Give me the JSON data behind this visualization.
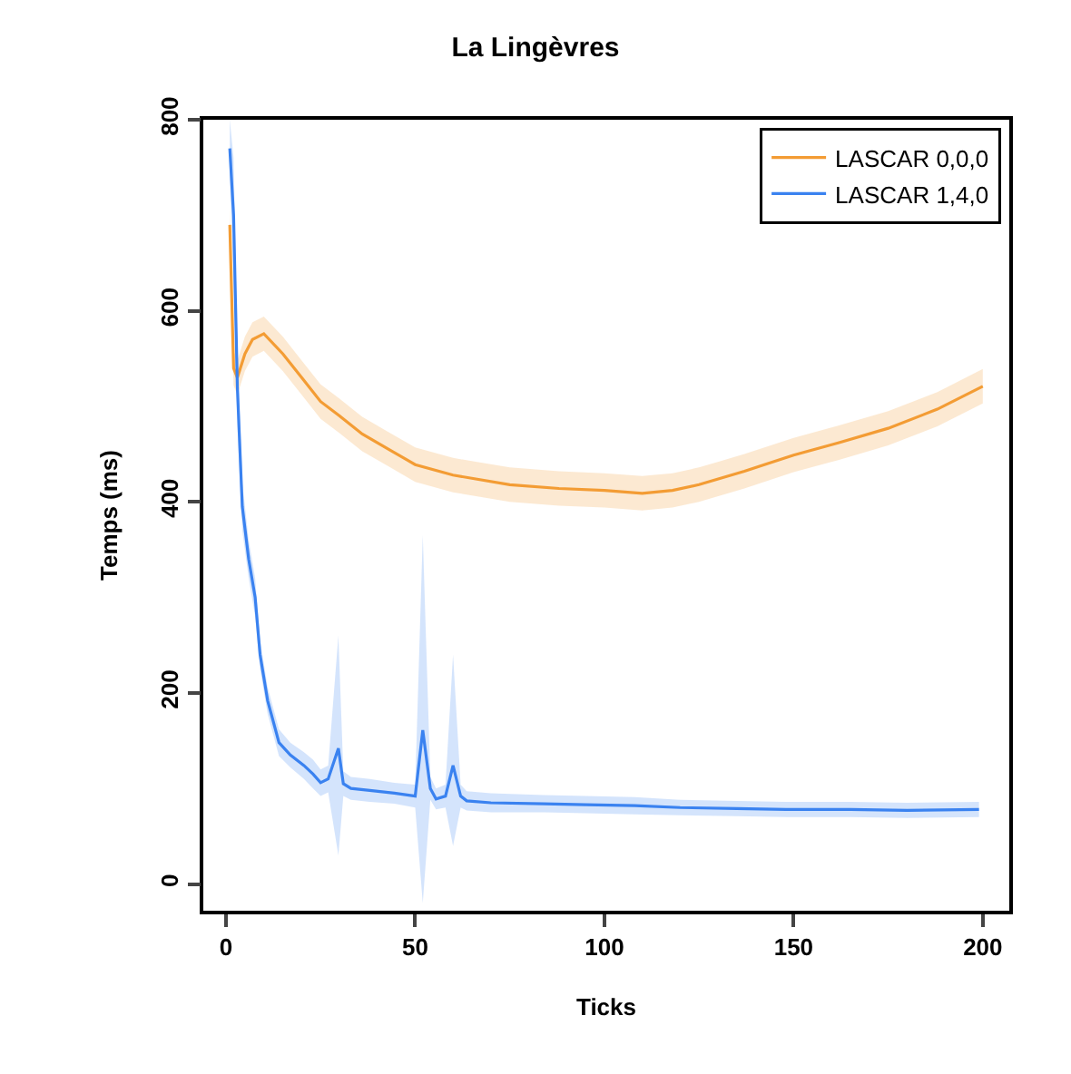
{
  "chart_data": {
    "type": "line",
    "title": "La Lingèvres",
    "xlabel": "Ticks",
    "ylabel": "Temps (ms)",
    "xlim": [
      -6,
      207
    ],
    "xticks": [
      0,
      50,
      100,
      150,
      200
    ],
    "ylim": [
      -28,
      800
    ],
    "yticks": [
      0,
      200,
      400,
      600,
      800
    ],
    "grid": false,
    "legend": "top right",
    "line_style": "solid",
    "marker": "none",
    "series": [
      {
        "name": "LASCAR 0,0,0",
        "color": "#f39c34",
        "x": [
          1,
          2,
          3,
          5,
          7,
          10,
          15,
          20,
          25,
          30,
          36,
          43,
          50,
          60,
          75,
          88,
          100,
          110,
          118,
          125,
          137,
          150,
          162,
          175,
          188,
          200
        ],
        "values": [
          690,
          540,
          530,
          555,
          570,
          576,
          555,
          530,
          505,
          490,
          471,
          455,
          439,
          428,
          418,
          414,
          412,
          409,
          412,
          418,
          432,
          449,
          462,
          477,
          497,
          521
        ],
        "lower": [
          672,
          522,
          512,
          537,
          552,
          558,
          537,
          512,
          487,
          472,
          453,
          437,
          421,
          410,
          400,
          396,
          394,
          391,
          394,
          400,
          414,
          431,
          444,
          459,
          479,
          503
        ],
        "upper": [
          708,
          558,
          548,
          573,
          588,
          594,
          573,
          548,
          523,
          508,
          489,
          473,
          457,
          446,
          436,
          432,
          430,
          427,
          430,
          436,
          450,
          467,
          480,
          495,
          515,
          539
        ]
      },
      {
        "name": "LASCAR 1,4,0",
        "color": "#3a82f0",
        "x": [
          1,
          2,
          3,
          4.3,
          6,
          7.7,
          9,
          11,
          14,
          17,
          20.6,
          23,
          25,
          27,
          29.7,
          31,
          33,
          38,
          44.5,
          50,
          52,
          54,
          55.5,
          58,
          60,
          62,
          63.6,
          70,
          84,
          95,
          108,
          120,
          135,
          148,
          165,
          180,
          199
        ],
        "values": [
          770,
          700,
          520,
          395,
          340,
          300,
          240,
          192,
          148,
          135,
          124,
          115,
          106,
          110,
          142,
          105,
          100,
          98,
          95,
          92,
          161,
          100,
          89,
          92,
          124,
          92,
          87,
          85,
          84,
          83,
          82,
          80,
          79,
          78,
          78,
          77,
          78
        ],
        "lower": [
          740,
          640,
          480,
          370,
          320,
          280,
          225,
          178,
          134,
          122,
          110,
          100,
          92,
          96,
          30,
          92,
          88,
          86,
          84,
          80,
          -20,
          88,
          78,
          80,
          40,
          80,
          77,
          75,
          75,
          74,
          73,
          72,
          71,
          70,
          70,
          69,
          70
        ],
        "upper": [
          800,
          760,
          560,
          420,
          360,
          320,
          255,
          206,
          162,
          148,
          138,
          130,
          120,
          124,
          260,
          118,
          112,
          110,
          106,
          104,
          365,
          112,
          100,
          104,
          240,
          104,
          97,
          95,
          93,
          92,
          91,
          88,
          87,
          86,
          86,
          85,
          86
        ]
      }
    ]
  }
}
